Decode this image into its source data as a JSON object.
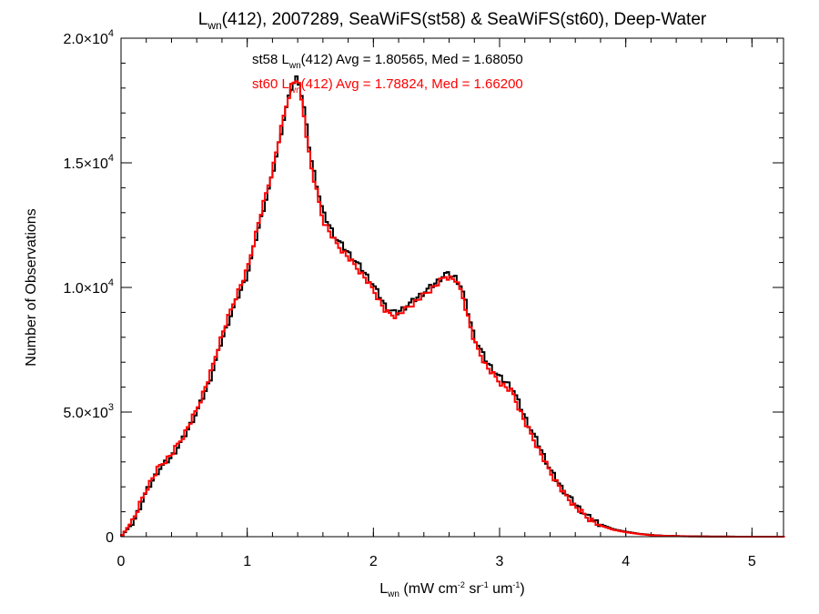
{
  "chart_data": {
    "type": "line",
    "title": {
      "pre": "L",
      "sub": "wn",
      "post": "(412), 2007289, SeaWiFS(st58) & SeaWiFS(st60), Deep-Water"
    },
    "xlabel": {
      "pre": "L",
      "sub": "wn",
      "mid1": " (mW cm",
      "sup1": "-2",
      "mid2": " sr",
      "sup2": "-1",
      "mid3": " um",
      "sup3": "-1",
      "post": ")"
    },
    "ylabel": "Number of Observations",
    "xlim": [
      0,
      5.25
    ],
    "ylim": [
      0,
      20000
    ],
    "x_ticks": [
      {
        "value": 0,
        "label": "0"
      },
      {
        "value": 1,
        "label": "1"
      },
      {
        "value": 2,
        "label": "2"
      },
      {
        "value": 3,
        "label": "3"
      },
      {
        "value": 4,
        "label": "4"
      },
      {
        "value": 5,
        "label": "5"
      }
    ],
    "y_ticks": [
      {
        "value": 0,
        "mantissa": "0",
        "exp": ""
      },
      {
        "value": 5000,
        "mantissa": "5.0×10",
        "exp": "3"
      },
      {
        "value": 10000,
        "mantissa": "1.0×10",
        "exp": "4"
      },
      {
        "value": 15000,
        "mantissa": "1.5×10",
        "exp": "4"
      },
      {
        "value": 20000,
        "mantissa": "2.0×10",
        "exp": "4"
      }
    ],
    "x_minor_step": 0.2,
    "y_minor_step": 1000,
    "bin_width": 0.02,
    "legend": [
      {
        "prefix": "st58 L",
        "sub": "wn",
        "suffix": "(412) Avg = 1.80565, Med = 1.68050",
        "color": "#000000"
      },
      {
        "prefix": "st60 L",
        "sub": "wn",
        "suffix": "(412) Avg = 1.78824, Med = 1.66200",
        "color": "#ff0000"
      }
    ],
    "series": [
      {
        "name": "st58",
        "color": "#000000",
        "profile": [
          [
            0,
            0
          ],
          [
            0.1,
            600
          ],
          [
            0.2,
            1800
          ],
          [
            0.3,
            2700
          ],
          [
            0.4,
            3200
          ],
          [
            0.5,
            4000
          ],
          [
            0.6,
            5000
          ],
          [
            0.7,
            6200
          ],
          [
            0.8,
            7900
          ],
          [
            0.9,
            9300
          ],
          [
            1.0,
            10500
          ],
          [
            1.1,
            12600
          ],
          [
            1.2,
            14500
          ],
          [
            1.3,
            17000
          ],
          [
            1.35,
            18000
          ],
          [
            1.4,
            18500
          ],
          [
            1.45,
            17200
          ],
          [
            1.5,
            15300
          ],
          [
            1.6,
            13000
          ],
          [
            1.7,
            12000
          ],
          [
            1.8,
            11400
          ],
          [
            1.9,
            10800
          ],
          [
            2.0,
            10100
          ],
          [
            2.1,
            9200
          ],
          [
            2.18,
            8950
          ],
          [
            2.3,
            9400
          ],
          [
            2.4,
            9800
          ],
          [
            2.5,
            10200
          ],
          [
            2.57,
            10550
          ],
          [
            2.65,
            10400
          ],
          [
            2.7,
            10000
          ],
          [
            2.8,
            8000
          ],
          [
            2.9,
            7000
          ],
          [
            3.0,
            6400
          ],
          [
            3.1,
            6000
          ],
          [
            3.2,
            4800
          ],
          [
            3.3,
            3800
          ],
          [
            3.4,
            2700
          ],
          [
            3.5,
            1900
          ],
          [
            3.6,
            1300
          ],
          [
            3.7,
            800
          ],
          [
            3.8,
            500
          ],
          [
            3.9,
            300
          ],
          [
            4.0,
            200
          ],
          [
            4.1,
            120
          ],
          [
            4.2,
            70
          ],
          [
            4.3,
            40
          ],
          [
            4.5,
            15
          ],
          [
            4.7,
            5
          ],
          [
            5.0,
            0
          ],
          [
            5.25,
            0
          ]
        ]
      },
      {
        "name": "st60",
        "color": "#ff0000",
        "profile": [
          [
            0,
            0
          ],
          [
            0.1,
            700
          ],
          [
            0.2,
            1900
          ],
          [
            0.3,
            2800
          ],
          [
            0.4,
            3300
          ],
          [
            0.5,
            4100
          ],
          [
            0.6,
            5100
          ],
          [
            0.7,
            6400
          ],
          [
            0.8,
            8100
          ],
          [
            0.9,
            9500
          ],
          [
            1.0,
            10700
          ],
          [
            1.1,
            12800
          ],
          [
            1.2,
            14700
          ],
          [
            1.3,
            17100
          ],
          [
            1.35,
            18100
          ],
          [
            1.4,
            18400
          ],
          [
            1.45,
            16900
          ],
          [
            1.5,
            15000
          ],
          [
            1.6,
            12700
          ],
          [
            1.7,
            11800
          ],
          [
            1.8,
            11200
          ],
          [
            1.9,
            10600
          ],
          [
            2.0,
            9900
          ],
          [
            2.1,
            9000
          ],
          [
            2.18,
            8850
          ],
          [
            2.3,
            9300
          ],
          [
            2.4,
            9700
          ],
          [
            2.5,
            10100
          ],
          [
            2.57,
            10450
          ],
          [
            2.65,
            10300
          ],
          [
            2.7,
            9800
          ],
          [
            2.8,
            7800
          ],
          [
            2.9,
            6800
          ],
          [
            3.0,
            6200
          ],
          [
            3.1,
            5800
          ],
          [
            3.2,
            4600
          ],
          [
            3.3,
            3600
          ],
          [
            3.4,
            2600
          ],
          [
            3.5,
            1800
          ],
          [
            3.6,
            1200
          ],
          [
            3.7,
            750
          ],
          [
            3.8,
            450
          ],
          [
            3.9,
            280
          ],
          [
            4.0,
            180
          ],
          [
            4.1,
            110
          ],
          [
            4.2,
            60
          ],
          [
            4.3,
            35
          ],
          [
            4.5,
            12
          ],
          [
            4.7,
            4
          ],
          [
            5.0,
            0
          ],
          [
            5.25,
            0
          ]
        ]
      }
    ]
  }
}
